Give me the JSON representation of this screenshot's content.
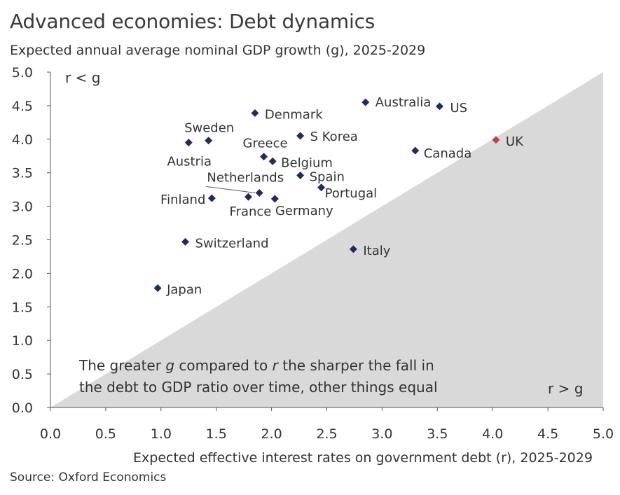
{
  "title": "Advanced economies: Debt dynamics",
  "source": "Source: Oxford Economics",
  "colors": {
    "marker": "#1f2d5c",
    "highlight": "#b5454a",
    "region": "#d9d9d9",
    "axis": "#555555",
    "text": "#333333"
  },
  "chart_data": {
    "type": "scatter",
    "title": "Advanced economies: Debt dynamics",
    "ylabel": "Expected annual average nominal GDP growth (g), 2025-2029",
    "xlabel": "Expected effective interest rates on government debt (r), 2025-2029",
    "xlim": [
      0,
      5
    ],
    "ylim": [
      0,
      5
    ],
    "x_ticks": [
      "0.0",
      "0.5",
      "1.0",
      "1.5",
      "2.0",
      "2.5",
      "3.0",
      "3.5",
      "4.0",
      "4.5",
      "5.0"
    ],
    "y_ticks": [
      "0.0",
      "0.5",
      "1.0",
      "1.5",
      "2.0",
      "2.5",
      "3.0",
      "3.5",
      "4.0",
      "4.5",
      "5.0"
    ],
    "grid": false,
    "shaded_region": "r > g (below the 45-degree line)",
    "region_labels": {
      "upper": "r < g",
      "lower": "r > g"
    },
    "annotation": {
      "line1_a": "The greater ",
      "line1_g": "g",
      "line1_b": " compared to ",
      "line1_r": "r",
      "line1_c": " the sharper the fall in",
      "line2": "the debt to GDP ratio over time, other things equal"
    },
    "points": [
      {
        "label": "Australia",
        "r": 2.85,
        "g": 4.55
      },
      {
        "label": "US",
        "r": 3.52,
        "g": 4.49
      },
      {
        "label": "Denmark",
        "r": 1.85,
        "g": 4.39
      },
      {
        "label": "S Korea",
        "r": 2.26,
        "g": 4.05
      },
      {
        "label": "UK",
        "r": 4.03,
        "g": 3.99,
        "highlight": true
      },
      {
        "label": "Sweden",
        "r": 1.43,
        "g": 3.98
      },
      {
        "label": "Austria",
        "r": 1.25,
        "g": 3.95
      },
      {
        "label": "Canada",
        "r": 3.3,
        "g": 3.83
      },
      {
        "label": "Greece",
        "r": 1.93,
        "g": 3.74
      },
      {
        "label": "Belgium",
        "r": 2.01,
        "g": 3.67
      },
      {
        "label": "Spain",
        "r": 2.26,
        "g": 3.46
      },
      {
        "label": "Portugal",
        "r": 2.45,
        "g": 3.28
      },
      {
        "label": "Netherlands",
        "r": 1.89,
        "g": 3.2
      },
      {
        "label": "France",
        "r": 1.79,
        "g": 3.14
      },
      {
        "label": "Finland",
        "r": 1.46,
        "g": 3.12
      },
      {
        "label": "Germany",
        "r": 2.03,
        "g": 3.11
      },
      {
        "label": "Switzerland",
        "r": 1.22,
        "g": 2.47
      },
      {
        "label": "Italy",
        "r": 2.74,
        "g": 2.36
      },
      {
        "label": "Japan",
        "r": 0.97,
        "g": 1.78
      }
    ]
  }
}
